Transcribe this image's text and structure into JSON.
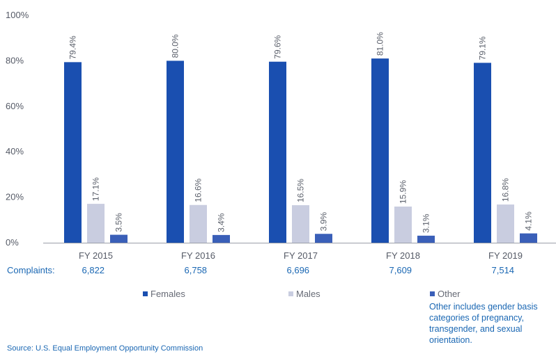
{
  "chart_data": {
    "type": "bar",
    "categories": [
      "FY 2015",
      "FY 2016",
      "FY 2017",
      "FY 2018",
      "FY 2019"
    ],
    "series": [
      {
        "name": "Females",
        "values": [
          79.4,
          80.0,
          79.6,
          81.0,
          79.1
        ],
        "labels": [
          "79.4%",
          "80.0%",
          "79.6%",
          "81.0%",
          "79.1%"
        ],
        "color": "#1a4fb0"
      },
      {
        "name": "Males",
        "values": [
          17.1,
          16.6,
          16.5,
          15.9,
          16.8
        ],
        "labels": [
          "17.1%",
          "16.6%",
          "16.5%",
          "15.9%",
          "16.8%"
        ],
        "color": "#c9cde0"
      },
      {
        "name": "Other",
        "values": [
          3.5,
          3.4,
          3.9,
          3.1,
          4.1
        ],
        "labels": [
          "3.5%",
          "3.4%",
          "3.9%",
          "3.1%",
          "4.1%"
        ],
        "color": "#3a5fb8"
      }
    ],
    "yticks": [
      "0%",
      "20%",
      "40%",
      "60%",
      "80%",
      "100%"
    ],
    "ylim": [
      0,
      100
    ],
    "grid": false,
    "legend": "bottom"
  },
  "complaints": {
    "label": "Complaints:",
    "values": [
      "6,822",
      "6,758",
      "6,696",
      "7,609",
      "7,514"
    ]
  },
  "other_note": "Other includes gender basis categories of pregnancy, transgender, and sexual orientation.",
  "source": "Source: U.S. Equal Employment Opportunity Commission"
}
